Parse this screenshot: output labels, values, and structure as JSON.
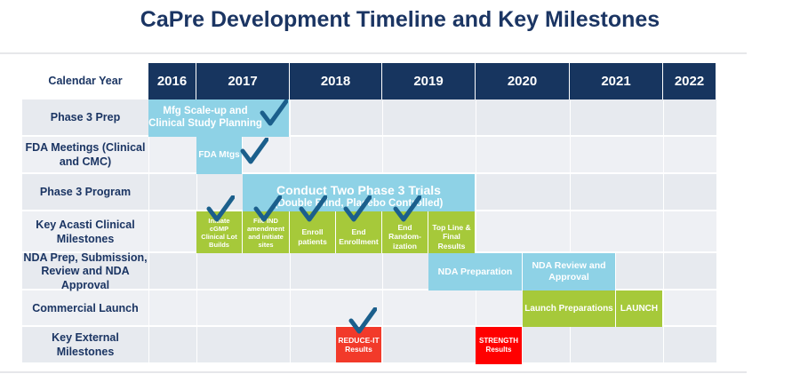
{
  "title": "CaPre Development Timeline and Key Milestones",
  "header_label": "Calendar Year",
  "years": [
    "2016",
    "2017",
    "2018",
    "2019",
    "2020",
    "2021",
    "2022"
  ],
  "rows": [
    "Phase 3 Prep",
    "FDA Meetings (Clinical and CMC)",
    "Phase 3 Program",
    "Key Acasti Clinical Milestones",
    "NDA Prep, Submission, Review and NDA Approval",
    "Commercial Launch",
    "Key External Milestones"
  ],
  "bars": {
    "mfg": "Mfg Scale-up and Clinical Study Planning",
    "fda": "FDA Mtgs",
    "trials_title": "Conduct Two Phase 3 Trials",
    "trials_sub": "(Double Blind, Placebo Controlled)",
    "m1": "Initiate cGMP Clinical Lot Builds",
    "m2": "File IND amendment and initiate sites",
    "m3": "Enroll patients",
    "m4": "End Enrollment",
    "m5": "End Random-ization",
    "m6": "Top Line & Final Results",
    "nda_prep": "NDA Preparation",
    "nda_review": "NDA Review and Approval",
    "launch_prep": "Launch Preparations",
    "launch": "LAUNCH",
    "reduce": "REDUCE-IT Results",
    "strength": "STRENGTH Results"
  },
  "colors": {
    "header": "#17355f",
    "blue_bar": "#8ed2e6",
    "green_bar": "#a6c93a",
    "red_bar": "#f23a2a",
    "check": "#1b5f8c"
  },
  "completed_icon": "checkmark-icon"
}
